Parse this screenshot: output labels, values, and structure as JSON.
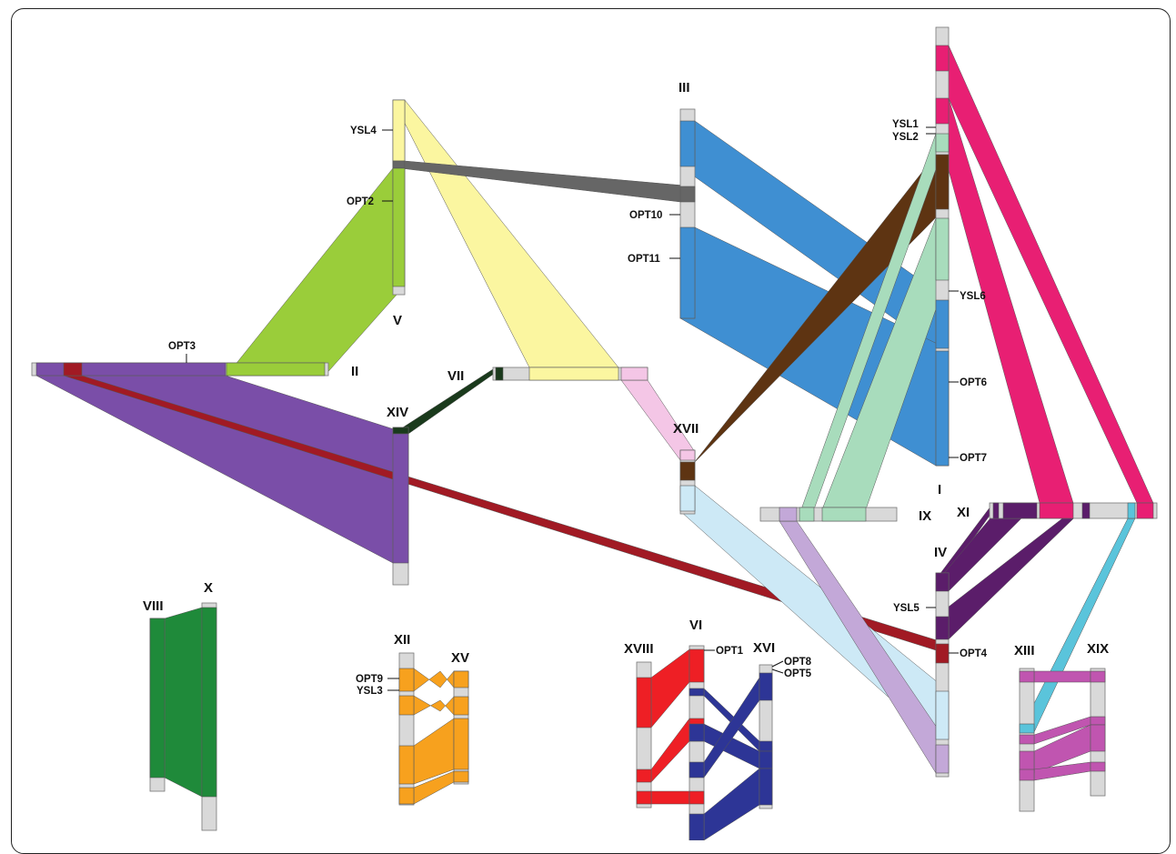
{
  "chromosomes": {
    "I": "I",
    "II": "II",
    "III": "III",
    "IV": "IV",
    "V": "V",
    "VI": "VI",
    "VII": "VII",
    "VIII": "VIII",
    "IX": "IX",
    "X": "X",
    "XI": "XI",
    "XII": "XII",
    "XIII": "XIII",
    "XIV": "XIV",
    "XV": "XV",
    "XVI": "XVI",
    "XVII": "XVII",
    "XVIII": "XVIII",
    "XIX": "XIX"
  },
  "genes": {
    "YSL4": "YSL4",
    "OPT2": "OPT2",
    "OPT3": "OPT3",
    "OPT10": "OPT10",
    "OPT11": "OPT11",
    "YSL1": "YSL1",
    "YSL2": "YSL2",
    "YSL6": "YSL6",
    "OPT6": "OPT6",
    "OPT7": "OPT7",
    "YSL5": "YSL5",
    "OPT4": "OPT4",
    "OPT1": "OPT1",
    "OPT8": "OPT8",
    "OPT5": "OPT5",
    "OPT9": "OPT9",
    "YSL3": "YSL3"
  },
  "colors": {
    "purple": "#7a4ea8",
    "darkred": "#a11a24",
    "lightgreen": "#9acd3a",
    "yellow": "#fbf6a0",
    "gray": "#666666",
    "blue": "#3f8fd2",
    "brown": "#5e3412",
    "pink": "#e81f73",
    "mint": "#a8dcbc",
    "lavender": "#c3a8d8",
    "lightblue": "#cde9f6",
    "lightpink": "#f4c6e6",
    "darkpurple": "#5b1d6a",
    "cyan": "#5ac4db",
    "darkgreen": "#1f8a3a",
    "orange": "#f7a11e",
    "red": "#ee1f25",
    "navy": "#2d3596",
    "magenta": "#c055b0"
  }
}
